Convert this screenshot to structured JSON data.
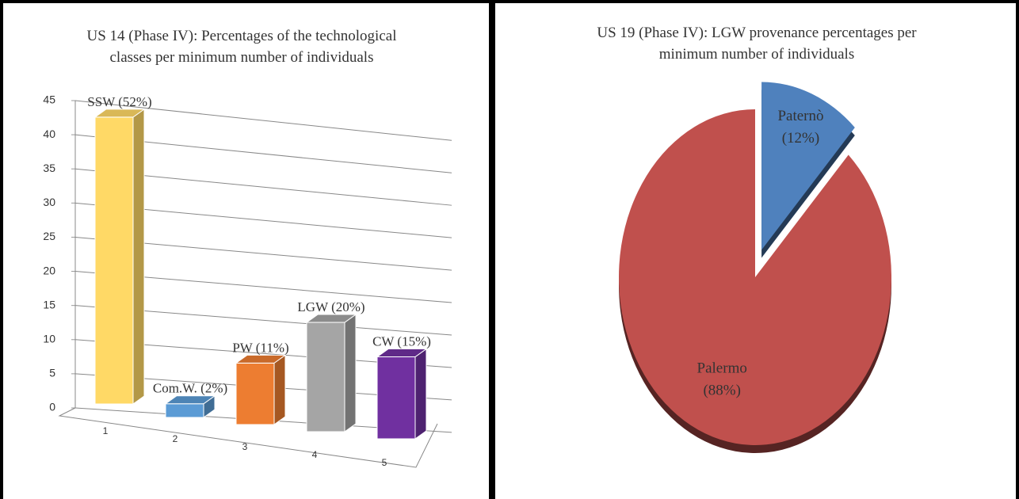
{
  "chart_data": [
    {
      "type": "bar3d",
      "title": "US 14 (Phase IV): Percentages of the technological classes per minimum number of individuals",
      "categories": [
        "1",
        "2",
        "3",
        "4",
        "5"
      ],
      "values": [
        42,
        2,
        9,
        16,
        12
      ],
      "data_labels": [
        "SSW (52%)",
        "Com.W. (2%)",
        "PW (11%)",
        "LGW (20%)",
        "CW (15%)"
      ],
      "colors": [
        "#ffd966",
        "#5b9bd5",
        "#ed7d31",
        "#a5a5a5",
        "#7030a0"
      ],
      "ylim": [
        0,
        45
      ],
      "yticks": [
        0,
        5,
        10,
        15,
        20,
        25,
        30,
        35,
        40,
        45
      ],
      "grid": true
    },
    {
      "type": "pie3d",
      "title": "US 19 (Phase IV): LGW provenance percentages per minimum number of individuals",
      "categories": [
        "Paternò",
        "Palermo"
      ],
      "values": [
        12,
        88
      ],
      "value_labels": [
        "(12%)",
        "(88%)"
      ],
      "colors": [
        "#4f81bd",
        "#c0504d"
      ]
    }
  ]
}
